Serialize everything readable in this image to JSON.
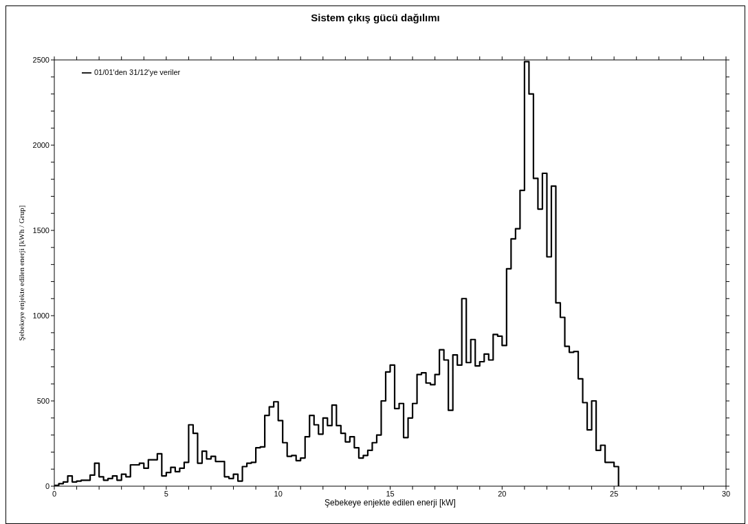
{
  "chart_data": {
    "type": "step",
    "title": "Sistem çıkış gücü dağılımı",
    "xlabel": "Şebekeye enjekte edilen enerji [kW]",
    "ylabel": "Şebekeye enjekte edilen enerji [kWh / Grup]",
    "x": [
      0,
      0.2,
      0.4,
      0.6,
      0.8,
      1,
      1.2,
      1.4,
      1.6,
      1.8,
      2,
      2.2,
      2.4,
      2.6,
      2.8,
      3,
      3.2,
      3.4,
      3.6,
      3.8,
      4,
      4.2,
      4.4,
      4.6,
      4.8,
      5,
      5.2,
      5.4,
      5.6,
      5.8,
      6,
      6.2,
      6.4,
      6.6,
      6.8,
      7,
      7.2,
      7.4,
      7.6,
      7.8,
      8,
      8.2,
      8.4,
      8.6,
      8.8,
      9,
      9.2,
      9.4,
      9.6,
      9.8,
      10,
      10.2,
      10.4,
      10.6,
      10.8,
      11,
      11.2,
      11.4,
      11.6,
      11.8,
      12,
      12.2,
      12.4,
      12.6,
      12.8,
      13,
      13.2,
      13.4,
      13.6,
      13.8,
      14,
      14.2,
      14.4,
      14.6,
      14.8,
      15,
      15.2,
      15.4,
      15.6,
      15.8,
      16,
      16.2,
      16.4,
      16.6,
      16.8,
      17,
      17.2,
      17.4,
      17.6,
      17.8,
      18,
      18.2,
      18.4,
      18.6,
      18.8,
      19,
      19.2,
      19.4,
      19.6,
      19.8,
      20,
      20.2,
      20.4,
      20.6,
      20.8,
      21,
      21.2,
      21.4,
      21.6,
      21.8,
      22,
      22.2,
      22.4,
      22.6,
      22.8,
      23,
      23.2,
      23.4,
      23.6,
      23.8,
      24,
      24.2,
      24.4,
      24.6,
      24.8,
      25,
      25.2
    ],
    "series": [
      {
        "name": "01/01'den 31/12'ye veriler",
        "color": "#000000",
        "values": [
          5,
          15,
          25,
          60,
          25,
          30,
          35,
          35,
          65,
          135,
          55,
          35,
          45,
          60,
          35,
          70,
          55,
          125,
          125,
          135,
          105,
          155,
          155,
          190,
          60,
          80,
          110,
          85,
          105,
          140,
          360,
          310,
          135,
          205,
          160,
          175,
          145,
          145,
          55,
          45,
          70,
          30,
          115,
          135,
          140,
          225,
          230,
          415,
          465,
          495,
          385,
          255,
          175,
          180,
          150,
          165,
          290,
          415,
          360,
          305,
          400,
          355,
          475,
          355,
          310,
          260,
          290,
          225,
          165,
          180,
          210,
          255,
          300,
          500,
          670,
          710,
          455,
          485,
          285,
          400,
          485,
          655,
          665,
          605,
          595,
          655,
          800,
          740,
          445,
          770,
          710,
          1100,
          725,
          860,
          705,
          730,
          775,
          740,
          890,
          880,
          825,
          1275,
          1450,
          1510,
          1735,
          2490,
          2300,
          1805,
          1625,
          1835,
          1345,
          1760,
          1075,
          990,
          820,
          785,
          790,
          630,
          490,
          330,
          500,
          210,
          240,
          140,
          140,
          115,
          0
        ]
      }
    ],
    "xlim": [
      0,
      30
    ],
    "xticks": [
      0,
      {
        "value": 1,
        "label": null
      },
      {
        "value": 2,
        "label": null
      },
      {
        "value": 3,
        "label": null
      },
      {
        "value": 4,
        "label": null
      },
      5,
      {
        "value": 6,
        "label": null
      },
      {
        "value": 7,
        "label": null
      },
      {
        "value": 8,
        "label": null
      },
      {
        "value": 9,
        "label": null
      },
      10,
      {
        "value": 11,
        "label": null
      },
      {
        "value": 12,
        "label": null
      },
      {
        "value": 13,
        "label": null
      },
      {
        "value": 14,
        "label": null
      },
      15,
      {
        "value": 16,
        "label": null
      },
      {
        "value": 17,
        "label": null
      },
      {
        "value": 18,
        "label": null
      },
      {
        "value": 19,
        "label": null
      },
      20,
      {
        "value": 21,
        "label": null
      },
      {
        "value": 22,
        "label": null
      },
      {
        "value": 23,
        "label": null
      },
      {
        "value": 24,
        "label": null
      },
      25,
      {
        "value": 26,
        "label": null
      },
      {
        "value": 27,
        "label": null
      },
      {
        "value": 28,
        "label": null
      },
      {
        "value": 29,
        "label": null
      },
      30
    ],
    "ylim": [
      0,
      2500
    ],
    "yticks": [
      0,
      {
        "value": 100,
        "label": null
      },
      {
        "value": 200,
        "label": null
      },
      {
        "value": 300,
        "label": null
      },
      {
        "value": 400,
        "label": null
      },
      500,
      {
        "value": 600,
        "label": null
      },
      {
        "value": 700,
        "label": null
      },
      {
        "value": 800,
        "label": null
      },
      {
        "value": 900,
        "label": null
      },
      1000,
      {
        "value": 1100,
        "label": null
      },
      {
        "value": 1200,
        "label": null
      },
      {
        "value": 1300,
        "label": null
      },
      {
        "value": 1400,
        "label": null
      },
      1500,
      {
        "value": 1600,
        "label": null
      },
      {
        "value": 1700,
        "label": null
      },
      {
        "value": 1800,
        "label": null
      },
      {
        "value": 1900,
        "label": null
      },
      2000,
      {
        "value": 2100,
        "label": null
      },
      {
        "value": 2200,
        "label": null
      },
      {
        "value": 2300,
        "label": null
      },
      {
        "value": 2400,
        "label": null
      },
      2500
    ],
    "grid": false,
    "legend": "top left",
    "marker": "none",
    "line_style": "solid"
  }
}
